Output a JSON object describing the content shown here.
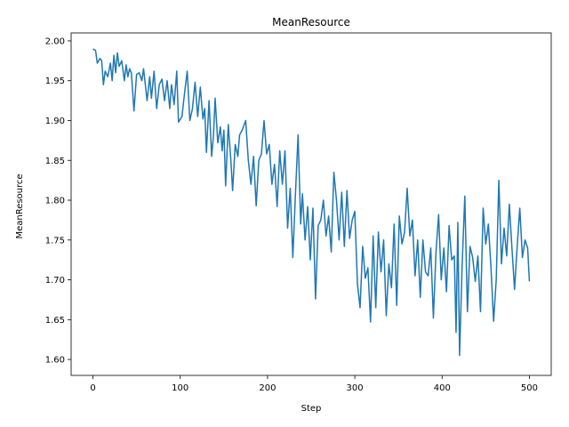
{
  "chart_data": {
    "type": "line",
    "title": "MeanResource",
    "xlabel": "Step",
    "ylabel": "MeanResource",
    "xlim": [
      -25,
      525
    ],
    "ylim": [
      1.58,
      2.01
    ],
    "xticks": [
      0,
      100,
      200,
      300,
      400,
      500
    ],
    "yticks": [
      1.6,
      1.65,
      1.7,
      1.75,
      1.8,
      1.85,
      1.9,
      1.95,
      2.0
    ],
    "xtick_labels": [
      "0",
      "100",
      "200",
      "300",
      "400",
      "500"
    ],
    "ytick_labels": [
      "1.60",
      "1.65",
      "1.70",
      "1.75",
      "1.80",
      "1.85",
      "1.90",
      "1.95",
      "2.00"
    ],
    "grid": false,
    "line_color": "#1f77b4",
    "series": [
      {
        "anchors": [
          [
            0,
            1.99
          ],
          [
            3,
            1.988
          ],
          [
            5,
            1.972
          ],
          [
            8,
            1.978
          ],
          [
            10,
            1.975
          ],
          [
            12,
            1.945
          ],
          [
            14,
            1.962
          ],
          [
            17,
            1.955
          ],
          [
            20,
            1.972
          ],
          [
            22,
            1.95
          ],
          [
            24,
            1.982
          ],
          [
            26,
            1.96
          ],
          [
            28,
            1.985
          ],
          [
            30,
            1.968
          ],
          [
            33,
            1.975
          ],
          [
            36,
            1.95
          ],
          [
            38,
            1.97
          ],
          [
            40,
            1.955
          ],
          [
            42,
            1.965
          ],
          [
            44,
            1.96
          ],
          [
            47,
            1.912
          ],
          [
            50,
            1.958
          ],
          [
            53,
            1.96
          ],
          [
            56,
            1.95
          ],
          [
            58,
            1.965
          ],
          [
            60,
            1.945
          ],
          [
            62,
            1.925
          ],
          [
            65,
            1.955
          ],
          [
            67,
            1.928
          ],
          [
            70,
            1.962
          ],
          [
            73,
            1.915
          ],
          [
            76,
            1.945
          ],
          [
            79,
            1.952
          ],
          [
            82,
            1.925
          ],
          [
            85,
            1.95
          ],
          [
            88,
            1.915
          ],
          [
            90,
            1.945
          ],
          [
            93,
            1.92
          ],
          [
            96,
            1.962
          ],
          [
            98,
            1.898
          ],
          [
            102,
            1.905
          ],
          [
            105,
            1.935
          ],
          [
            108,
            1.962
          ],
          [
            111,
            1.9
          ],
          [
            114,
            1.915
          ],
          [
            117,
            1.948
          ],
          [
            120,
            1.905
          ],
          [
            123,
            1.942
          ],
          [
            126,
            1.902
          ],
          [
            128,
            1.915
          ],
          [
            130,
            1.86
          ],
          [
            133,
            1.925
          ],
          [
            136,
            1.855
          ],
          [
            138,
            1.88
          ],
          [
            140,
            1.928
          ],
          [
            143,
            1.872
          ],
          [
            146,
            1.892
          ],
          [
            148,
            1.862
          ],
          [
            150,
            1.888
          ],
          [
            152,
            1.818
          ],
          [
            155,
            1.895
          ],
          [
            158,
            1.85
          ],
          [
            160,
            1.812
          ],
          [
            163,
            1.87
          ],
          [
            166,
            1.855
          ],
          [
            168,
            1.882
          ],
          [
            171,
            1.888
          ],
          [
            175,
            1.9
          ],
          [
            178,
            1.85
          ],
          [
            181,
            1.82
          ],
          [
            184,
            1.855
          ],
          [
            187,
            1.793
          ],
          [
            190,
            1.85
          ],
          [
            193,
            1.858
          ],
          [
            196,
            1.9
          ],
          [
            199,
            1.858
          ],
          [
            202,
            1.87
          ],
          [
            205,
            1.82
          ],
          [
            208,
            1.845
          ],
          [
            211,
            1.792
          ],
          [
            214,
            1.862
          ],
          [
            217,
            1.82
          ],
          [
            220,
            1.862
          ],
          [
            223,
            1.765
          ],
          [
            226,
            1.815
          ],
          [
            229,
            1.728
          ],
          [
            232,
            1.808
          ],
          [
            235,
            1.882
          ],
          [
            238,
            1.77
          ],
          [
            240,
            1.808
          ],
          [
            243,
            1.75
          ],
          [
            246,
            1.792
          ],
          [
            249,
            1.725
          ],
          [
            252,
            1.79
          ],
          [
            255,
            1.676
          ],
          [
            258,
            1.768
          ],
          [
            261,
            1.775
          ],
          [
            264,
            1.8
          ],
          [
            267,
            1.755
          ],
          [
            270,
            1.78
          ],
          [
            273,
            1.735
          ],
          [
            276,
            1.835
          ],
          [
            279,
            1.8
          ],
          [
            282,
            1.75
          ],
          [
            285,
            1.81
          ],
          [
            288,
            1.742
          ],
          [
            291,
            1.812
          ],
          [
            294,
            1.752
          ],
          [
            297,
            1.775
          ],
          [
            300,
            1.786
          ],
          [
            303,
            1.695
          ],
          [
            306,
            1.665
          ],
          [
            309,
            1.742
          ],
          [
            312,
            1.702
          ],
          [
            315,
            1.715
          ],
          [
            318,
            1.647
          ],
          [
            321,
            1.755
          ],
          [
            324,
            1.665
          ],
          [
            327,
            1.76
          ],
          [
            330,
            1.71
          ],
          [
            333,
            1.75
          ],
          [
            336,
            1.655
          ],
          [
            339,
            1.72
          ],
          [
            342,
            1.69
          ],
          [
            345,
            1.77
          ],
          [
            348,
            1.668
          ],
          [
            351,
            1.78
          ],
          [
            354,
            1.745
          ],
          [
            357,
            1.76
          ],
          [
            360,
            1.815
          ],
          [
            363,
            1.755
          ],
          [
            366,
            1.775
          ],
          [
            369,
            1.705
          ],
          [
            372,
            1.75
          ],
          [
            375,
            1.678
          ],
          [
            378,
            1.75
          ],
          [
            381,
            1.71
          ],
          [
            384,
            1.705
          ],
          [
            387,
            1.74
          ],
          [
            390,
            1.652
          ],
          [
            393,
            1.735
          ],
          [
            396,
            1.782
          ],
          [
            399,
            1.7
          ],
          [
            402,
            1.74
          ],
          [
            405,
            1.685
          ],
          [
            408,
            1.768
          ],
          [
            411,
            1.725
          ],
          [
            414,
            1.73
          ],
          [
            416,
            1.634
          ],
          [
            418,
            1.772
          ],
          [
            420,
            1.605
          ],
          [
            423,
            1.72
          ],
          [
            426,
            1.805
          ],
          [
            429,
            1.66
          ],
          [
            432,
            1.742
          ],
          [
            435,
            1.728
          ],
          [
            438,
            1.698
          ],
          [
            441,
            1.73
          ],
          [
            444,
            1.66
          ],
          [
            447,
            1.79
          ],
          [
            450,
            1.745
          ],
          [
            453,
            1.77
          ],
          [
            456,
            1.715
          ],
          [
            459,
            1.648
          ],
          [
            462,
            1.7
          ],
          [
            465,
            1.825
          ],
          [
            468,
            1.72
          ],
          [
            471,
            1.765
          ],
          [
            474,
            1.73
          ],
          [
            477,
            1.795
          ],
          [
            480,
            1.74
          ],
          [
            483,
            1.688
          ],
          [
            486,
            1.742
          ],
          [
            489,
            1.79
          ],
          [
            492,
            1.728
          ],
          [
            495,
            1.75
          ],
          [
            498,
            1.74
          ],
          [
            500,
            1.698
          ]
        ]
      }
    ]
  }
}
